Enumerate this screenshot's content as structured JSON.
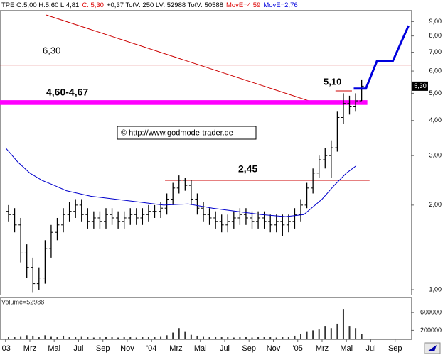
{
  "chart_data": {
    "type": "ohlc",
    "header": [
      {
        "text": "TPE O:5,00 H:5,60 L:4,81",
        "color": "#000000"
      },
      {
        "text": "C: 5,30",
        "color": "#dd0000"
      },
      {
        "text": "+0,37 TotV: 250 LV: 52988 TotV: 50588",
        "color": "#000000"
      },
      {
        "text": "MovE=4,59",
        "color": "#dd0000"
      },
      {
        "text": "MovE=2,76",
        "color": "#0000dd"
      }
    ],
    "copyright": "© http://www.godmode-trader.de",
    "volume_label": "Volume=52988",
    "log_scale": true,
    "xlim": [
      -0.45,
      33.3
    ],
    "xticks": [
      {
        "value": 0,
        "label": "'03"
      },
      {
        "value": 2,
        "label": "Mrz"
      },
      {
        "value": 4,
        "label": "Mai"
      },
      {
        "value": 6,
        "label": "Jul"
      },
      {
        "value": 8,
        "label": "Sep"
      },
      {
        "value": 10,
        "label": "Nov"
      },
      {
        "value": 12,
        "label": "'04"
      },
      {
        "value": 14,
        "label": "Mrz"
      },
      {
        "value": 16,
        "label": "Mai"
      },
      {
        "value": 18,
        "label": "Jul"
      },
      {
        "value": 20,
        "label": "Sep"
      },
      {
        "value": 22,
        "label": "Nov"
      },
      {
        "value": 24,
        "label": "'05"
      },
      {
        "value": 26,
        "label": "Mrz"
      },
      {
        "value": 28,
        "label": "Mai"
      },
      {
        "value": 30,
        "label": "Jul"
      },
      {
        "value": 32,
        "label": "Sep"
      }
    ],
    "ylim": [
      0.96,
      9.9
    ],
    "yticks": [
      {
        "value": 1,
        "label": "1,00"
      },
      {
        "value": 2,
        "label": "2,00"
      },
      {
        "value": 3,
        "label": "3,00"
      },
      {
        "value": 4,
        "label": "4,00"
      },
      {
        "value": 5,
        "label": "5,00"
      },
      {
        "value": 6,
        "label": "6,00"
      },
      {
        "value": 7,
        "label": "7,00"
      },
      {
        "value": 8,
        "label": "8,00"
      },
      {
        "value": 9,
        "label": "9,00"
      }
    ],
    "color": "#000000",
    "x": [
      0.25,
      0.75,
      1.25,
      1.75,
      2.25,
      2.75,
      3.25,
      3.75,
      4.25,
      4.75,
      5.25,
      5.75,
      6.25,
      6.75,
      7.25,
      7.75,
      8.25,
      8.75,
      9.25,
      9.75,
      10.25,
      10.75,
      11.25,
      11.75,
      12.25,
      12.75,
      13.25,
      13.75,
      14.25,
      14.75,
      15.25,
      15.75,
      16.25,
      16.75,
      17.25,
      17.75,
      18.25,
      18.75,
      19.25,
      19.75,
      20.25,
      20.75,
      21.25,
      21.75,
      22.25,
      22.75,
      23.25,
      23.75,
      24.25,
      24.75,
      25.25,
      25.75,
      26.25,
      26.75,
      27.25,
      27.75,
      28.25,
      28.75,
      29.25
    ],
    "open": [
      1.9,
      1.85,
      1.7,
      1.35,
      1.2,
      1.05,
      1.1,
      1.4,
      1.6,
      1.7,
      1.85,
      1.9,
      2.0,
      1.85,
      1.75,
      1.8,
      1.75,
      1.85,
      1.8,
      1.75,
      1.8,
      1.85,
      1.8,
      1.85,
      1.9,
      1.9,
      1.95,
      2.1,
      2.3,
      2.45,
      2.35,
      2.1,
      1.95,
      1.85,
      1.8,
      1.75,
      1.7,
      1.75,
      1.8,
      1.85,
      1.8,
      1.75,
      1.8,
      1.75,
      1.7,
      1.75,
      1.7,
      1.75,
      1.85,
      2.0,
      2.3,
      2.6,
      2.9,
      3.0,
      3.2,
      4.1,
      4.6,
      4.5,
      4.7
    ],
    "high": [
      2.0,
      1.95,
      1.8,
      1.45,
      1.3,
      1.2,
      1.5,
      1.7,
      1.8,
      1.95,
      2.05,
      2.1,
      2.1,
      1.95,
      1.9,
      1.9,
      1.95,
      1.95,
      1.9,
      1.9,
      1.95,
      1.95,
      1.95,
      2.0,
      2.0,
      2.05,
      2.2,
      2.4,
      2.55,
      2.5,
      2.45,
      2.2,
      2.05,
      1.95,
      1.9,
      1.85,
      1.85,
      1.9,
      1.95,
      1.95,
      1.9,
      1.9,
      1.9,
      1.85,
      1.85,
      1.85,
      1.85,
      1.95,
      2.1,
      2.4,
      2.7,
      3.0,
      3.2,
      3.4,
      4.3,
      5.0,
      4.9,
      5.0,
      5.6
    ],
    "low": [
      1.75,
      1.6,
      1.25,
      1.1,
      0.98,
      1.0,
      1.05,
      1.3,
      1.5,
      1.6,
      1.75,
      1.8,
      1.75,
      1.65,
      1.65,
      1.65,
      1.65,
      1.7,
      1.65,
      1.65,
      1.7,
      1.7,
      1.7,
      1.75,
      1.8,
      1.8,
      1.85,
      2.0,
      2.2,
      2.25,
      2.0,
      1.85,
      1.75,
      1.7,
      1.65,
      1.6,
      1.6,
      1.65,
      1.7,
      1.7,
      1.65,
      1.65,
      1.65,
      1.6,
      1.6,
      1.55,
      1.6,
      1.65,
      1.75,
      1.95,
      2.2,
      2.5,
      2.7,
      2.5,
      3.1,
      3.9,
      4.2,
      4.3,
      4.7
    ],
    "close": [
      1.85,
      1.7,
      1.35,
      1.2,
      1.05,
      1.1,
      1.4,
      1.6,
      1.7,
      1.85,
      1.9,
      2.0,
      1.85,
      1.75,
      1.8,
      1.75,
      1.85,
      1.8,
      1.75,
      1.8,
      1.85,
      1.8,
      1.85,
      1.9,
      1.9,
      1.95,
      2.1,
      2.3,
      2.45,
      2.35,
      2.1,
      1.95,
      1.85,
      1.8,
      1.75,
      1.7,
      1.75,
      1.8,
      1.85,
      1.8,
      1.75,
      1.8,
      1.75,
      1.7,
      1.75,
      1.7,
      1.75,
      1.85,
      2.0,
      2.3,
      2.6,
      2.9,
      3.0,
      3.2,
      4.1,
      4.6,
      4.5,
      4.7,
      5.3
    ],
    "volume": [
      60000,
      50000,
      70000,
      90000,
      80000,
      60000,
      90000,
      70000,
      60000,
      80000,
      50000,
      60000,
      70000,
      50000,
      40000,
      50000,
      60000,
      50000,
      40000,
      60000,
      50000,
      40000,
      50000,
      60000,
      50000,
      70000,
      90000,
      150000,
      250000,
      180000,
      100000,
      80000,
      70000,
      60000,
      50000,
      60000,
      50000,
      40000,
      60000,
      50000,
      40000,
      50000,
      60000,
      50000,
      40000,
      50000,
      60000,
      80000,
      120000,
      180000,
      200000,
      220000,
      300000,
      250000,
      350000,
      680000,
      300000,
      250000,
      120000
    ],
    "volume_color": "#333333",
    "volume_ylim": [
      0,
      920000
    ],
    "volume_yticks": [
      200000,
      600000
    ],
    "moving_average": {
      "color": "#0000cc",
      "x": [
        0,
        1,
        2,
        3,
        4,
        5,
        7,
        9,
        11,
        13,
        15,
        17,
        19,
        21,
        23,
        24.5,
        26,
        27,
        28,
        28.8
      ],
      "values": [
        3.2,
        2.85,
        2.6,
        2.45,
        2.35,
        2.25,
        2.15,
        2.1,
        2.05,
        2.0,
        2.02,
        1.95,
        1.9,
        1.85,
        1.82,
        1.85,
        2.1,
        2.35,
        2.6,
        2.76
      ]
    },
    "trend_line": {
      "color": "#cc0000",
      "x": [
        3.35,
        25.1
      ],
      "values": [
        9.5,
        4.67
      ]
    },
    "forecast": {
      "color": "#0000dd",
      "x": [
        28.6,
        29.6,
        30.5,
        31.8,
        33.1
      ],
      "values": [
        5.2,
        5.2,
        6.5,
        6.5,
        8.7
      ]
    },
    "levels": [
      {
        "label": "6,30",
        "values": [
          6.3
        ],
        "from": -0.45,
        "to": 33.3,
        "color": "#cc0000"
      },
      {
        "label": "4,60-4,67",
        "values": [
          4.6,
          4.67
        ],
        "from": -0.45,
        "to": 29.6,
        "color": "#ff00ff"
      },
      {
        "label": "2,45",
        "values": [
          2.45
        ],
        "from": 13.1,
        "to": 29.9,
        "color": "#cc0000"
      },
      {
        "label": "5,10",
        "values": [
          5.1
        ],
        "from": 27.1,
        "to": 28.45,
        "color": "#cc0000"
      }
    ],
    "last_price": {
      "value": 5.3,
      "label": "5,30"
    }
  }
}
